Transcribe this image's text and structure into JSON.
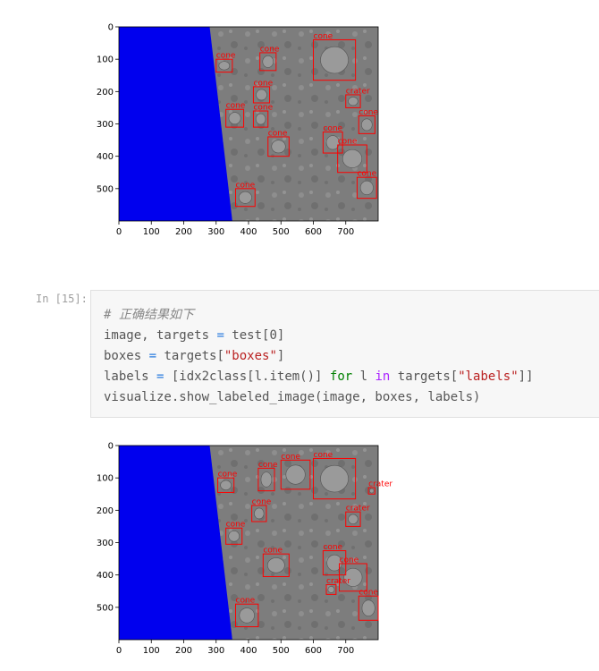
{
  "cells": [
    {
      "x_ticks": [
        "0",
        "100",
        "200",
        "300",
        "400",
        "500",
        "600",
        "700"
      ],
      "y_ticks": [
        "0",
        "100",
        "200",
        "300",
        "400",
        "500"
      ],
      "boxes": [
        {
          "label": "cone",
          "x1": 300,
          "y1": 100,
          "x2": 350,
          "y2": 140
        },
        {
          "label": "cone",
          "x1": 435,
          "y1": 80,
          "x2": 485,
          "y2": 135
        },
        {
          "label": "cone",
          "x1": 600,
          "y1": 40,
          "x2": 730,
          "y2": 165
        },
        {
          "label": "cone",
          "x1": 415,
          "y1": 185,
          "x2": 465,
          "y2": 235
        },
        {
          "label": "crater",
          "x1": 700,
          "y1": 210,
          "x2": 745,
          "y2": 250
        },
        {
          "label": "cone",
          "x1": 330,
          "y1": 255,
          "x2": 385,
          "y2": 310
        },
        {
          "label": "cone",
          "x1": 415,
          "y1": 260,
          "x2": 460,
          "y2": 310
        },
        {
          "label": "cone",
          "x1": 740,
          "y1": 275,
          "x2": 790,
          "y2": 330
        },
        {
          "label": "cone",
          "x1": 460,
          "y1": 340,
          "x2": 525,
          "y2": 400
        },
        {
          "label": "cone",
          "x1": 630,
          "y1": 325,
          "x2": 690,
          "y2": 390
        },
        {
          "label": "cone",
          "x1": 675,
          "y1": 365,
          "x2": 765,
          "y2": 450
        },
        {
          "label": "cone",
          "x1": 735,
          "y1": 465,
          "x2": 795,
          "y2": 530
        },
        {
          "label": "cone",
          "x1": 360,
          "y1": 500,
          "x2": 420,
          "y2": 555
        }
      ]
    },
    {
      "x_ticks": [
        "0",
        "100",
        "200",
        "300",
        "400",
        "500",
        "600",
        "700"
      ],
      "y_ticks": [
        "0",
        "100",
        "200",
        "300",
        "400",
        "500"
      ],
      "boxes": [
        {
          "label": "cone",
          "x1": 305,
          "y1": 100,
          "x2": 355,
          "y2": 145
        },
        {
          "label": "cone",
          "x1": 430,
          "y1": 70,
          "x2": 480,
          "y2": 140
        },
        {
          "label": "cone",
          "x1": 500,
          "y1": 45,
          "x2": 590,
          "y2": 135
        },
        {
          "label": "cone",
          "x1": 600,
          "y1": 40,
          "x2": 730,
          "y2": 165
        },
        {
          "label": "crater",
          "x1": 770,
          "y1": 130,
          "x2": 790,
          "y2": 150
        },
        {
          "label": "cone",
          "x1": 410,
          "y1": 185,
          "x2": 455,
          "y2": 235
        },
        {
          "label": "crater",
          "x1": 700,
          "y1": 205,
          "x2": 745,
          "y2": 250
        },
        {
          "label": "cone",
          "x1": 330,
          "y1": 255,
          "x2": 380,
          "y2": 305
        },
        {
          "label": "cone",
          "x1": 445,
          "y1": 335,
          "x2": 525,
          "y2": 405
        },
        {
          "label": "cone",
          "x1": 630,
          "y1": 325,
          "x2": 700,
          "y2": 400
        },
        {
          "label": "cone",
          "x1": 680,
          "y1": 365,
          "x2": 765,
          "y2": 450
        },
        {
          "label": "crater",
          "x1": 640,
          "y1": 430,
          "x2": 670,
          "y2": 460
        },
        {
          "label": "cone",
          "x1": 740,
          "y1": 465,
          "x2": 800,
          "y2": 540
        },
        {
          "label": "cone",
          "x1": 360,
          "y1": 490,
          "x2": 430,
          "y2": 560
        }
      ]
    }
  ],
  "code_cell": {
    "prompt": "In [15]:",
    "comment": "# 正确结果如下",
    "line2": {
      "a": "image, targets ",
      "op": "=",
      "b": " test[",
      "n": "0",
      "c": "]"
    },
    "line3": {
      "a": "boxes ",
      "op": "=",
      "b": " targets[",
      "s": "\"boxes\"",
      "c": "]"
    },
    "line4": {
      "a": "labels ",
      "op": "=",
      "b": " [idx2class[l.item()] ",
      "kw_for": "for",
      "c": " l ",
      "kw_in": "in",
      "d": " targets[",
      "s": "\"labels\"",
      "e": "]]"
    },
    "line5": "visualize.show_labeled_image(image, boxes, labels)"
  }
}
